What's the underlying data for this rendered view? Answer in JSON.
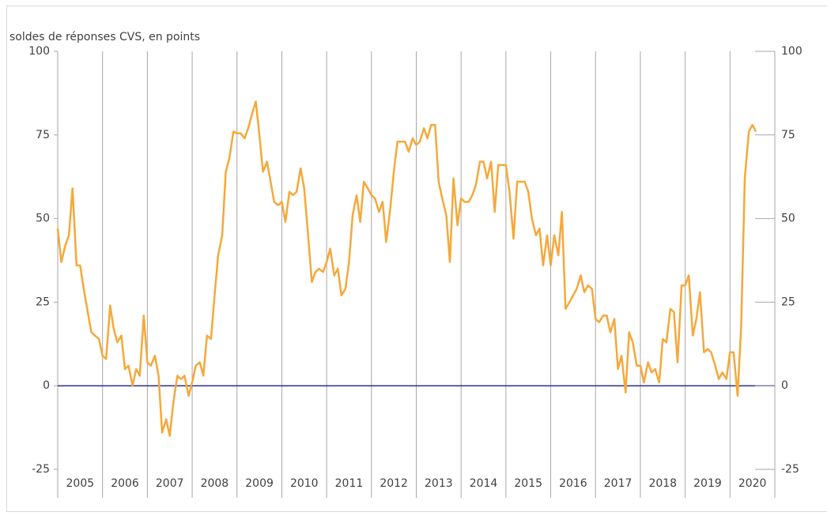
{
  "chart_data": {
    "type": "line",
    "y_label": "soldes de réponses CVS, en points",
    "x": [
      2005.0,
      2005.08,
      2005.17,
      2005.25,
      2005.33,
      2005.42,
      2005.5,
      2005.58,
      2005.67,
      2005.75,
      2005.83,
      2005.92,
      2006.0,
      2006.08,
      2006.17,
      2006.25,
      2006.33,
      2006.42,
      2006.5,
      2006.58,
      2006.67,
      2006.75,
      2006.83,
      2006.92,
      2007.0,
      2007.08,
      2007.17,
      2007.25,
      2007.33,
      2007.42,
      2007.5,
      2007.58,
      2007.67,
      2007.75,
      2007.83,
      2007.92,
      2008.0,
      2008.08,
      2008.17,
      2008.25,
      2008.33,
      2008.42,
      2008.5,
      2008.58,
      2008.67,
      2008.75,
      2008.83,
      2008.92,
      2009.0,
      2009.08,
      2009.17,
      2009.25,
      2009.33,
      2009.42,
      2009.5,
      2009.58,
      2009.67,
      2009.75,
      2009.83,
      2009.92,
      2010.0,
      2010.08,
      2010.17,
      2010.25,
      2010.33,
      2010.42,
      2010.5,
      2010.58,
      2010.67,
      2010.75,
      2010.83,
      2010.92,
      2011.0,
      2011.08,
      2011.17,
      2011.25,
      2011.33,
      2011.42,
      2011.5,
      2011.58,
      2011.67,
      2011.75,
      2011.83,
      2011.92,
      2012.0,
      2012.08,
      2012.17,
      2012.25,
      2012.33,
      2012.42,
      2012.5,
      2012.58,
      2012.67,
      2012.75,
      2012.83,
      2012.92,
      2013.0,
      2013.08,
      2013.17,
      2013.25,
      2013.33,
      2013.42,
      2013.5,
      2013.58,
      2013.67,
      2013.75,
      2013.83,
      2013.92,
      2014.0,
      2014.08,
      2014.17,
      2014.25,
      2014.33,
      2014.42,
      2014.5,
      2014.58,
      2014.67,
      2014.75,
      2014.83,
      2014.92,
      2015.0,
      2015.08,
      2015.17,
      2015.25,
      2015.33,
      2015.42,
      2015.5,
      2015.58,
      2015.67,
      2015.75,
      2015.83,
      2015.92,
      2016.0,
      2016.08,
      2016.17,
      2016.25,
      2016.33,
      2016.42,
      2016.5,
      2016.58,
      2016.67,
      2016.75,
      2016.83,
      2016.92,
      2017.0,
      2017.08,
      2017.17,
      2017.25,
      2017.33,
      2017.42,
      2017.5,
      2017.58,
      2017.67,
      2017.75,
      2017.83,
      2017.92,
      2018.0,
      2018.08,
      2018.17,
      2018.25,
      2018.33,
      2018.42,
      2018.5,
      2018.58,
      2018.67,
      2018.75,
      2018.83,
      2018.92,
      2019.0,
      2019.08,
      2019.17,
      2019.25,
      2019.33,
      2019.42,
      2019.5,
      2019.58,
      2019.67,
      2019.75,
      2019.83,
      2019.92,
      2020.0,
      2020.08,
      2020.17,
      2020.25,
      2020.33,
      2020.42,
      2020.5,
      2020.58
    ],
    "series": [
      {
        "color": "#f5a83a",
        "values": [
          47,
          37,
          42,
          45,
          59,
          36,
          36,
          29,
          22,
          16,
          15,
          14,
          9,
          8,
          24,
          17,
          13,
          15,
          5,
          6,
          0,
          5,
          3,
          21,
          7,
          6,
          9,
          3,
          -14,
          -10,
          -15,
          -5,
          3,
          2,
          3,
          -3,
          1,
          6,
          7,
          3,
          15,
          14,
          27,
          39,
          45,
          64,
          68,
          76,
          75.5,
          75.5,
          74,
          77,
          81,
          85,
          75,
          64,
          67,
          61,
          55,
          54,
          55,
          49,
          58,
          57,
          58,
          65,
          59,
          46,
          31,
          34,
          35,
          34,
          37,
          41,
          33,
          35,
          27,
          29,
          37,
          51,
          57,
          49,
          61,
          59,
          57,
          56,
          52,
          55,
          43,
          53,
          64,
          73,
          73,
          73,
          70,
          74,
          72,
          73,
          77,
          74,
          78,
          78,
          61,
          56,
          51,
          37,
          62,
          48,
          56,
          55,
          55,
          57,
          60,
          67,
          67,
          62,
          67,
          52,
          66,
          66,
          66,
          58,
          44,
          61,
          61,
          61,
          58,
          50,
          45,
          47,
          36,
          45,
          36,
          45,
          39,
          52,
          23,
          25,
          27,
          29,
          33,
          28,
          30,
          29,
          20,
          19,
          21,
          21,
          16,
          20,
          5,
          9,
          -2,
          16,
          13,
          6,
          6,
          1,
          7,
          4,
          5,
          1,
          14,
          13,
          23,
          22,
          7,
          30,
          30,
          33,
          15,
          20,
          28,
          10,
          11,
          10,
          6,
          2,
          4,
          2,
          10,
          10,
          -3,
          18,
          62,
          76,
          78,
          76
        ]
      }
    ],
    "xlim": [
      2005,
      2021
    ],
    "xticks": [
      2005,
      2006,
      2007,
      2008,
      2009,
      2010,
      2011,
      2012,
      2013,
      2014,
      2015,
      2016,
      2017,
      2018,
      2019,
      2020
    ],
    "ylim": [
      -25,
      100
    ],
    "yticks": [
      -25,
      0,
      25,
      50,
      75,
      100
    ],
    "y2lim": [
      -25,
      100
    ],
    "y2ticks": [
      -25,
      0,
      25,
      50,
      75,
      100
    ],
    "zero_line_color": "#2e3192",
    "grid_color": "#a6a6a6"
  }
}
